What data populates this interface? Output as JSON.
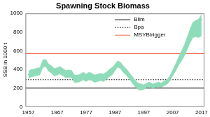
{
  "chart_data": {
    "type": "line",
    "title": "Spawning Stock Biomass",
    "y_label": "SSB in 1000 t",
    "x": [
      1957,
      1958,
      1959,
      1960,
      1961,
      1962,
      1963,
      1964,
      1965,
      1966,
      1967,
      1968,
      1969,
      1970,
      1971,
      1972,
      1973,
      1974,
      1975,
      1976,
      1977,
      1978,
      1979,
      1980,
      1981,
      1982,
      1983,
      1984,
      1985,
      1986,
      1987,
      1988,
      1989,
      1990,
      1991,
      1992,
      1993,
      1994,
      1995,
      1996,
      1997,
      1998,
      1999,
      2000,
      2001,
      2002,
      2003,
      2004,
      2005,
      2006,
      2007,
      2008,
      2009,
      2010,
      2011,
      2012,
      2013,
      2014,
      2015,
      2016,
      2017
    ],
    "values": [
      340,
      360,
      365,
      375,
      380,
      460,
      470,
      420,
      400,
      370,
      380,
      390,
      370,
      350,
      355,
      350,
      300,
      300,
      310,
      330,
      310,
      330,
      320,
      300,
      310,
      320,
      310,
      330,
      360,
      380,
      420,
      460,
      440,
      400,
      370,
      330,
      290,
      250,
      220,
      210,
      210,
      230,
      240,
      220,
      230,
      240,
      230,
      250,
      270,
      310,
      370,
      430,
      500,
      560,
      620,
      700,
      780,
      850,
      870,
      880,
      940
    ],
    "color": "#2e8b57",
    "interval": {
      "lower": [
        300,
        320,
        325,
        335,
        340,
        420,
        430,
        380,
        360,
        330,
        340,
        350,
        330,
        310,
        315,
        310,
        260,
        260,
        270,
        290,
        270,
        290,
        280,
        260,
        270,
        280,
        270,
        290,
        320,
        340,
        385,
        425,
        405,
        365,
        335,
        295,
        255,
        215,
        185,
        175,
        185,
        205,
        215,
        195,
        205,
        215,
        205,
        225,
        240,
        275,
        330,
        380,
        440,
        490,
        540,
        610,
        680,
        740,
        750,
        740,
        760
      ],
      "upper": [
        380,
        400,
        405,
        415,
        420,
        500,
        510,
        460,
        440,
        410,
        420,
        430,
        410,
        390,
        395,
        390,
        340,
        340,
        350,
        370,
        350,
        370,
        360,
        340,
        350,
        360,
        350,
        370,
        400,
        420,
        455,
        495,
        475,
        435,
        405,
        365,
        325,
        285,
        255,
        245,
        235,
        255,
        265,
        245,
        255,
        265,
        255,
        275,
        290,
        332,
        395,
        458,
        530,
        595,
        660,
        745,
        830,
        905,
        925,
        940,
        990
      ],
      "color": "#8edcb9"
    },
    "reference_lines": [
      {
        "name": "Blim",
        "value": 200,
        "color": "#000000",
        "line_style": "solid"
      },
      {
        "name": "Bpa",
        "value": 290,
        "color": "#000000",
        "line_style": "dotted"
      },
      {
        "name": "MSYBtrigger",
        "value": 570,
        "color": "#f26c4f",
        "line_style": "solid"
      }
    ],
    "xlim": [
      1956,
      2018
    ],
    "xticks": [
      1957,
      1967,
      1977,
      1987,
      1997,
      2007,
      2017
    ],
    "ylim": [
      0,
      1000
    ],
    "yticks": [
      0,
      200,
      400,
      600,
      800,
      1000
    ],
    "grid": false,
    "legend": "top"
  }
}
